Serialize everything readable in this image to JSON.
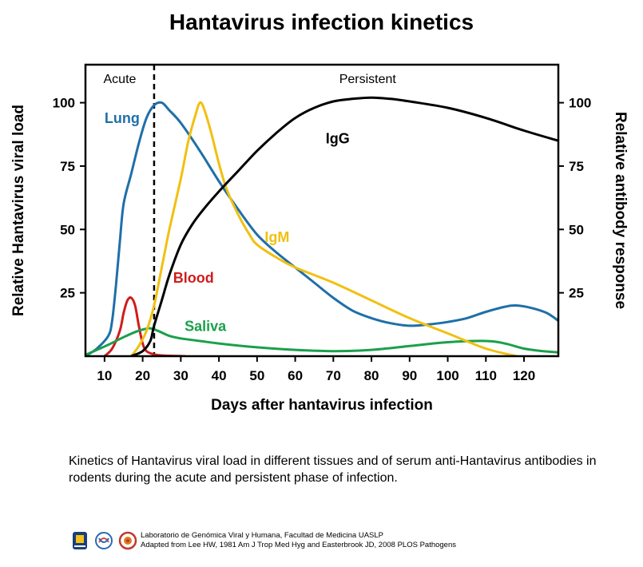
{
  "page": {
    "title": "Hantavirus infection kinetics",
    "caption": "Kinetics of Hantavirus viral load in different tissues and of serum anti-Hantavirus antibodies in rodents during the acute and persistent phase of infection.",
    "credit_line1": "Laboratorio de Genómica Viral y Humana, Facultad de Medicina UASLP",
    "credit_line2": "Adapted from Lee HW, 1981 Am J Trop Med Hyg and Easterbrook JD, 2008 PLOS Pathogens",
    "logos": [
      "uaslp-seal-logo",
      "genomica-lab-logo",
      "medicina-seal-logo"
    ]
  },
  "chart_data": {
    "type": "line",
    "title": "Hantavirus infection kinetics",
    "xlabel": "Days after hantavirus infection",
    "ylabel_left": "Relative Hantavirus viral load",
    "ylabel_right": "Relative antibody response",
    "xlim": [
      5,
      129
    ],
    "ylim": [
      0,
      115
    ],
    "x_ticks": [
      10,
      20,
      30,
      40,
      50,
      60,
      70,
      80,
      90,
      100,
      110,
      120
    ],
    "y_ticks": [
      25,
      50,
      75,
      100
    ],
    "phase_divider_x": 23,
    "phase_labels": [
      {
        "text": "Acute",
        "x": 14
      },
      {
        "text": "Persistent",
        "x": 79
      }
    ],
    "series": [
      {
        "name": "Lung",
        "color": "#1f6fa8",
        "label_x": 10,
        "label_y": 92,
        "points": [
          [
            5,
            0
          ],
          [
            8,
            3
          ],
          [
            11,
            8
          ],
          [
            12,
            14
          ],
          [
            13,
            28
          ],
          [
            14,
            45
          ],
          [
            15,
            60
          ],
          [
            17,
            72
          ],
          [
            19,
            84
          ],
          [
            21,
            94
          ],
          [
            23,
            99
          ],
          [
            25,
            100
          ],
          [
            27,
            97
          ],
          [
            30,
            92
          ],
          [
            35,
            81
          ],
          [
            40,
            69
          ],
          [
            45,
            58
          ],
          [
            50,
            48
          ],
          [
            55,
            41
          ],
          [
            60,
            35
          ],
          [
            65,
            29
          ],
          [
            70,
            23
          ],
          [
            75,
            18
          ],
          [
            80,
            15
          ],
          [
            85,
            13
          ],
          [
            90,
            12
          ],
          [
            95,
            12.5
          ],
          [
            100,
            13.5
          ],
          [
            105,
            15
          ],
          [
            110,
            17.5
          ],
          [
            115,
            19.5
          ],
          [
            118,
            20
          ],
          [
            122,
            19
          ],
          [
            126,
            17
          ],
          [
            129,
            14
          ]
        ]
      },
      {
        "name": "Blood",
        "color": "#d01c1c",
        "label_x": 28,
        "label_y": 29,
        "points": [
          [
            10,
            0
          ],
          [
            12,
            3
          ],
          [
            14,
            10
          ],
          [
            15,
            17
          ],
          [
            16,
            22
          ],
          [
            17,
            23
          ],
          [
            18,
            20
          ],
          [
            19,
            12
          ],
          [
            20,
            5
          ],
          [
            21,
            2
          ],
          [
            23,
            0.7
          ],
          [
            26,
            0.2
          ],
          [
            31,
            0
          ]
        ]
      },
      {
        "name": "Saliva",
        "color": "#1aa04a",
        "label_x": 31,
        "label_y": 10,
        "points": [
          [
            5,
            0.5
          ],
          [
            8,
            2.5
          ],
          [
            11,
            4.5
          ],
          [
            15,
            7.5
          ],
          [
            18,
            9.5
          ],
          [
            20,
            10.5
          ],
          [
            22,
            11
          ],
          [
            24,
            10
          ],
          [
            27,
            8
          ],
          [
            30,
            7
          ],
          [
            35,
            6
          ],
          [
            40,
            5
          ],
          [
            50,
            3.5
          ],
          [
            60,
            2.5
          ],
          [
            70,
            2
          ],
          [
            80,
            2.5
          ],
          [
            90,
            4
          ],
          [
            100,
            5.5
          ],
          [
            110,
            6
          ],
          [
            115,
            5
          ],
          [
            120,
            3
          ],
          [
            125,
            2
          ],
          [
            129,
            1.5
          ]
        ]
      },
      {
        "name": "IgM",
        "color": "#f1c011",
        "label_x": 52,
        "label_y": 45,
        "points": [
          [
            17,
            0
          ],
          [
            19,
            4
          ],
          [
            21,
            10
          ],
          [
            23,
            20
          ],
          [
            25,
            35
          ],
          [
            27,
            50
          ],
          [
            30,
            70
          ],
          [
            32,
            85
          ],
          [
            34,
            96
          ],
          [
            35,
            100
          ],
          [
            36,
            98
          ],
          [
            38,
            88
          ],
          [
            40,
            76
          ],
          [
            42,
            66
          ],
          [
            45,
            56
          ],
          [
            48,
            48
          ],
          [
            50,
            44
          ],
          [
            55,
            39
          ],
          [
            60,
            35
          ],
          [
            70,
            29
          ],
          [
            80,
            22
          ],
          [
            90,
            15
          ],
          [
            100,
            9
          ],
          [
            110,
            3
          ],
          [
            118,
            0
          ]
        ]
      },
      {
        "name": "IgG",
        "color": "#000000",
        "label_x": 68,
        "label_y": 84,
        "points": [
          [
            17,
            0
          ],
          [
            20,
            2
          ],
          [
            22,
            6
          ],
          [
            23,
            12
          ],
          [
            25,
            22
          ],
          [
            27,
            32
          ],
          [
            30,
            44
          ],
          [
            33,
            52
          ],
          [
            36,
            58
          ],
          [
            40,
            65
          ],
          [
            45,
            73
          ],
          [
            50,
            81
          ],
          [
            55,
            88
          ],
          [
            60,
            94
          ],
          [
            65,
            98
          ],
          [
            70,
            100.5
          ],
          [
            75,
            101.5
          ],
          [
            80,
            102
          ],
          [
            85,
            101.5
          ],
          [
            90,
            100.5
          ],
          [
            100,
            98
          ],
          [
            110,
            94
          ],
          [
            120,
            89
          ],
          [
            129,
            85
          ]
        ]
      }
    ]
  }
}
